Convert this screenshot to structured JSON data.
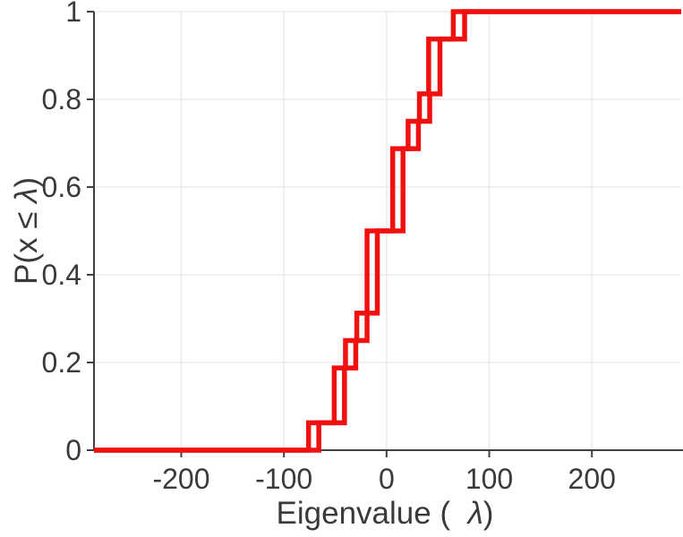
{
  "chart_data": {
    "type": "line",
    "subtype": "empirical-cdf-stairs",
    "title": "",
    "xlabel": "Eigenvalue (  λ)",
    "ylabel": "P(x ≤ λ)",
    "xlabel_parts": {
      "prefix": "Eigenvalue (  ",
      "lambda": "λ",
      "suffix": ")"
    },
    "ylabel_parts": {
      "prefix": "P(x ≤ ",
      "lambda": "λ",
      "suffix": ")"
    },
    "xlim": [
      -285,
      287
    ],
    "ylim": [
      0,
      1
    ],
    "xticks": [
      -200,
      -100,
      0,
      100,
      200
    ],
    "xtick_labels": [
      "-200",
      "-100",
      "0",
      "100",
      "200"
    ],
    "yticks": [
      0,
      0.2,
      0.4,
      0.6,
      0.8,
      1
    ],
    "ytick_labels": [
      "0",
      "0.2",
      "0.4",
      "0.6",
      "0.8",
      "1"
    ],
    "grid": true,
    "legend": "none",
    "colors": {
      "line": "#f01010",
      "grid": "#ebebeb",
      "axis": "#404040",
      "text": "#3a3a3a",
      "background": "#ffffff"
    },
    "points_per_series": 16,
    "series": [
      {
        "name": "ecdf-step-line-1",
        "jump_x": [
          -76,
          -51,
          -40,
          -29,
          -19,
          6,
          21,
          32,
          41,
          65
        ],
        "level_after": [
          0.0625,
          0.1875,
          0.25,
          0.3125,
          0.5,
          0.6875,
          0.75,
          0.8125,
          0.9375,
          1
        ]
      },
      {
        "name": "ecdf-step-line-2",
        "jump_x": [
          -66,
          -41,
          -30,
          -19,
          -9,
          16,
          31,
          42,
          52,
          76
        ],
        "level_after": [
          0.0625,
          0.1875,
          0.25,
          0.3125,
          0.5,
          0.6875,
          0.75,
          0.8125,
          0.9375,
          1
        ]
      }
    ]
  }
}
